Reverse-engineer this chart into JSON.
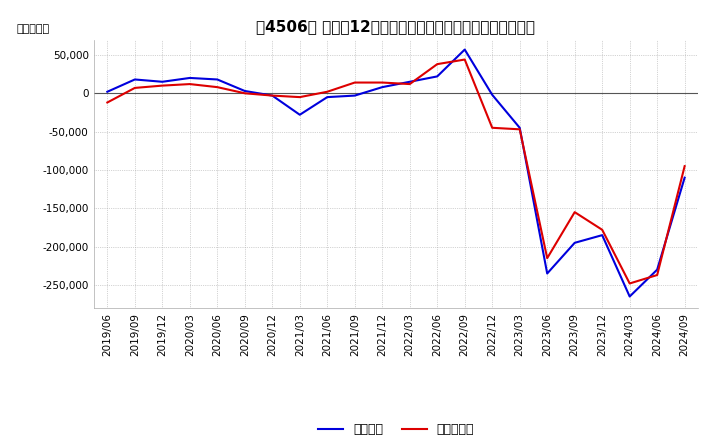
{
  "title": "［4506］ 利益の12か月移動合計の対前年同期増減額の推移",
  "ylabel": "（百万円）",
  "ylim": [
    -280000,
    70000
  ],
  "yticks": [
    50000,
    0,
    -50000,
    -100000,
    -150000,
    -200000,
    -250000
  ],
  "line1_color": "#0000DD",
  "line2_color": "#DD0000",
  "line1_label": "経常利益",
  "line2_label": "当期純利益",
  "dates": [
    "2019/06",
    "2019/09",
    "2019/12",
    "2020/03",
    "2020/06",
    "2020/09",
    "2020/12",
    "2021/03",
    "2021/06",
    "2021/09",
    "2021/12",
    "2022/03",
    "2022/06",
    "2022/09",
    "2022/12",
    "2023/03",
    "2023/06",
    "2023/09",
    "2023/12",
    "2024/03",
    "2024/06",
    "2024/09"
  ],
  "operating_profit": [
    2000,
    18000,
    15000,
    20000,
    18000,
    3000,
    -3000,
    -28000,
    -5000,
    -3000,
    8000,
    15000,
    22000,
    57000,
    -2000,
    -45000,
    -235000,
    -195000,
    -185000,
    -265000,
    -230000,
    -110000
  ],
  "net_profit": [
    -12000,
    7000,
    10000,
    12000,
    8000,
    0,
    -3000,
    -5000,
    2000,
    14000,
    14000,
    12000,
    38000,
    44000,
    -45000,
    -47000,
    -215000,
    -155000,
    -178000,
    -248000,
    -237000,
    -95000
  ],
  "bg_color": "#FFFFFF",
  "grid_color": "#AAAAAA",
  "title_fontsize": 11,
  "tick_label_fontsize": 7.5,
  "legend_fontsize": 9
}
